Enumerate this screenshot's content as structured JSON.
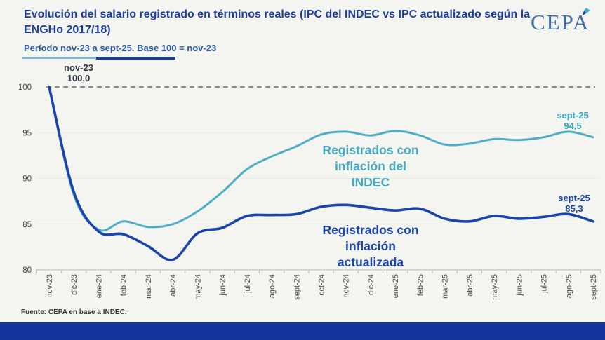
{
  "header": {
    "title": "Evolución del salario registrado en términos reales (IPC del INDEC vs IPC actualizado según la ENGHo 2017/18)",
    "subtitle": "Período nov-23 a sept-25. Base 100 = nov-23",
    "logo_text": "CEPA"
  },
  "footer": {
    "source": "Fuente: CEPA en base a INDEC."
  },
  "colors": {
    "background": "#f4f5f1",
    "title": "#1c3d9e",
    "subtitle": "#2c59ad",
    "underline_light": "#7fb3d9",
    "underline_dark": "#1a3f9f",
    "logo": "#3e6ca9",
    "bottom_bar": "#16349d",
    "baseline_dashed": "#7f7f7f",
    "axis": "#c2c3bf",
    "tick_text": "#4a4a4a"
  },
  "chart_data": {
    "type": "line",
    "title": "Evolución del salario registrado en términos reales (IPC del INDEC vs IPC actualizado según la ENGHo 2017/18)",
    "subtitle": "Período nov-23 a sept-25. Base 100 = nov-23",
    "x": [
      "nov-23",
      "dic-23",
      "ene-24",
      "feb-24",
      "mar-24",
      "abr-24",
      "may-24",
      "jun-24",
      "jul-24",
      "ago-24",
      "sept-24",
      "oct-24",
      "nov-24",
      "dic-24",
      "ene-25",
      "feb-25",
      "mar-25",
      "abr-25",
      "may-25",
      "jun-25",
      "jul-25",
      "ago-25",
      "sept-25"
    ],
    "series": [
      {
        "name": "Registrados con inflación del INDEC",
        "color": "#4faec5",
        "values": [
          100.0,
          88.2,
          84.4,
          85.3,
          84.7,
          85.0,
          86.4,
          88.5,
          91.0,
          92.4,
          93.5,
          94.8,
          95.1,
          94.7,
          95.2,
          94.7,
          93.7,
          93.8,
          94.3,
          94.2,
          94.5,
          95.1,
          94.5
        ]
      },
      {
        "name": "Registrados con inflación actualizada",
        "color": "#1c44ae",
        "values": [
          100.0,
          88.5,
          84.2,
          83.9,
          82.6,
          81.1,
          84.0,
          84.6,
          85.9,
          86.0,
          86.1,
          86.9,
          87.1,
          86.8,
          86.5,
          86.7,
          85.6,
          85.3,
          85.9,
          85.6,
          85.8,
          86.1,
          85.3
        ]
      }
    ],
    "ylim": [
      80,
      100
    ],
    "yticks": [
      80,
      85,
      90,
      95,
      100
    ],
    "grid": "horizontal-faint",
    "baseline": {
      "value": 100,
      "style": "dashed"
    },
    "legend_position": "in-plot-text-labels",
    "annotations": {
      "start": {
        "line1": "nov-23",
        "line2": "100,0"
      },
      "end_indec": {
        "line1": "sept-25",
        "line2": "94,5"
      },
      "end_act": {
        "line1": "sept-25",
        "line2": "85,3"
      },
      "series_indec_label": [
        "Registrados con",
        "inflación del",
        "INDEC"
      ],
      "series_act_label": [
        "Registrados con",
        "inflación",
        "actualizada"
      ]
    }
  }
}
